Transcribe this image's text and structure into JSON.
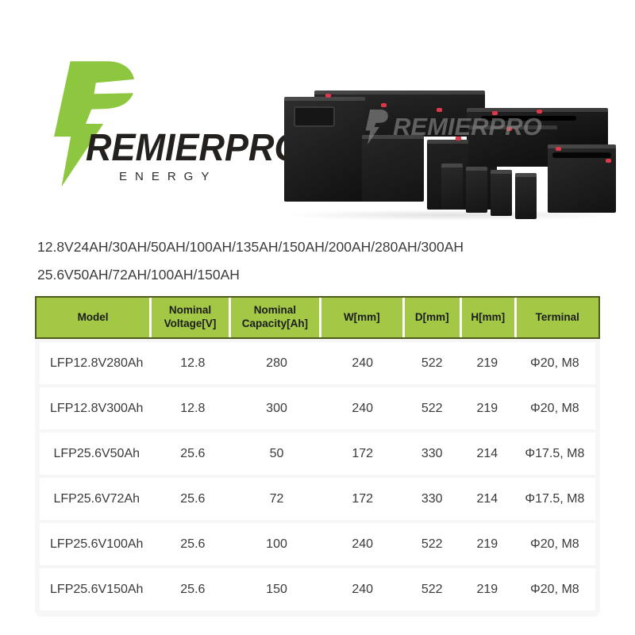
{
  "logo": {
    "brand": "REMIERPRO",
    "sub": "ENERGY",
    "bolt_color": "#8dc63f"
  },
  "product_image": {
    "watermark_text": "REMIERPRO",
    "description": "group of black LiFePO4 battery boxes with red terminal stickers"
  },
  "specs": {
    "line1": "12.8V24AH/30AH/50AH/100AH/135AH/150AH/200AH/280AH/300AH",
    "line2": "25.6V50AH/72AH/100AH/150AH"
  },
  "table": {
    "header_bg": "#a3c845",
    "header_border": "#4d5a1c",
    "headers": [
      "Model",
      "Nominal Voltage[V]",
      "Nominal Capacity[Ah]",
      "W[mm]",
      "D[mm]",
      "H[mm]",
      "Terminal"
    ],
    "rows": [
      [
        "LFP12.8V280Ah",
        "12.8",
        "280",
        "240",
        "522",
        "219",
        "Φ20, M8"
      ],
      [
        "LFP12.8V300Ah",
        "12.8",
        "300",
        "240",
        "522",
        "219",
        "Φ20, M8"
      ],
      [
        "LFP25.6V50Ah",
        "25.6",
        "50",
        "172",
        "330",
        "214",
        "Φ17.5, M8"
      ],
      [
        "LFP25.6V72Ah",
        "25.6",
        "72",
        "172",
        "330",
        "214",
        "Φ17.5, M8"
      ],
      [
        "LFP25.6V100Ah",
        "25.6",
        "100",
        "240",
        "522",
        "219",
        "Φ20, M8"
      ],
      [
        "LFP25.6V150Ah",
        "25.6",
        "150",
        "240",
        "522",
        "219",
        "Φ20, M8"
      ]
    ]
  }
}
